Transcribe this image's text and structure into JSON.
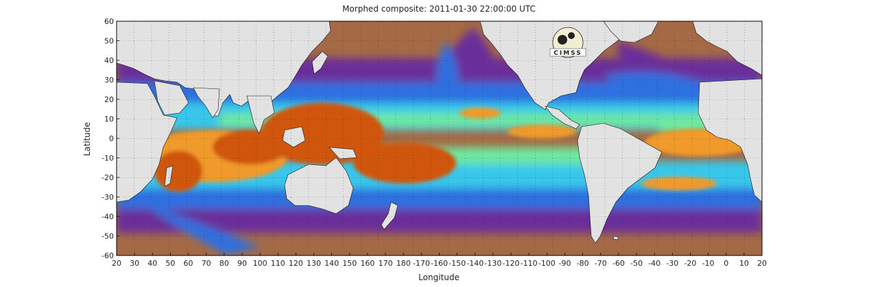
{
  "title": "Morphed composite: 2011-01-30 22:00:00 UTC",
  "xlabel": "Longitude",
  "ylabel": "Latitude",
  "x_ticks": [
    "20",
    "30",
    "40",
    "50",
    "60",
    "70",
    "80",
    "90",
    "100",
    "110",
    "120",
    "130",
    "140",
    "150",
    "160",
    "170",
    "180",
    "-170",
    "-160",
    "-150",
    "-140",
    "-130",
    "-120",
    "-110",
    "-100",
    "-90",
    "-80",
    "-70",
    "-60",
    "-50",
    "-40",
    "-30",
    "-20",
    "-10",
    "0",
    "10",
    "20"
  ],
  "y_ticks": [
    "60",
    "50",
    "40",
    "30",
    "20",
    "10",
    "0",
    "-10",
    "-20",
    "-30",
    "-40",
    "-50",
    "-60"
  ],
  "logo_text": "CIMSS",
  "colors": {
    "land": "#e2e2e2",
    "ocean_dry": "#a56a45",
    "very_low": "#6a2f9a",
    "low": "#2e6fe0",
    "mid": "#37c7ea",
    "moist": "#6ee8a0",
    "high": "#ef9a2a",
    "very_high": "#d0560e"
  }
}
